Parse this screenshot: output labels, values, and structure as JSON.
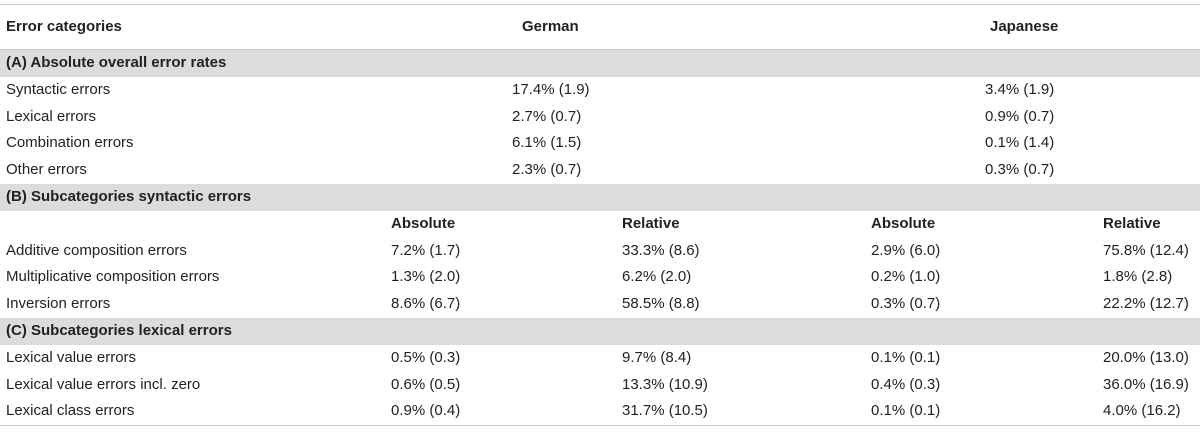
{
  "header": {
    "col_categories": "Error categories",
    "col_german": "German",
    "col_japanese": "Japanese"
  },
  "section_a": {
    "title": "(A) Absolute overall error rates",
    "rows": [
      {
        "label": "Syntactic errors",
        "german": "17.4% (1.9)",
        "japanese": "3.4% (1.9)"
      },
      {
        "label": "Lexical errors",
        "german": "2.7% (0.7)",
        "japanese": "0.9% (0.7)"
      },
      {
        "label": "Combination errors",
        "german": "6.1% (1.5)",
        "japanese": "0.1% (1.4)"
      },
      {
        "label": "Other errors",
        "german": "2.3% (0.7)",
        "japanese": "0.3% (0.7)"
      }
    ]
  },
  "section_b": {
    "title": "(B) Subcategories syntactic errors",
    "subheaders": {
      "german_absolute": "Absolute",
      "german_relative": "Relative",
      "japanese_absolute": "Absolute",
      "japanese_relative": "Relative"
    },
    "rows": [
      {
        "label": "Additive composition errors",
        "german_abs": "7.2% (1.7)",
        "german_rel": "33.3% (8.6)",
        "japanese_abs": "2.9% (6.0)",
        "japanese_rel": "75.8% (12.4)"
      },
      {
        "label": "Multiplicative composition errors",
        "german_abs": "1.3% (2.0)",
        "german_rel": "6.2% (2.0)",
        "japanese_abs": "0.2% (1.0)",
        "japanese_rel": "1.8% (2.8)"
      },
      {
        "label": "Inversion errors",
        "german_abs": "8.6% (6.7)",
        "german_rel": "58.5% (8.8)",
        "japanese_abs": "0.3% (0.7)",
        "japanese_rel": "22.2% (12.7)"
      }
    ]
  },
  "section_c": {
    "title": "(C) Subcategories lexical errors",
    "rows": [
      {
        "label": "Lexical value errors",
        "german_abs": "0.5% (0.3)",
        "german_rel": "9.7% (8.4)",
        "japanese_abs": "0.1% (0.1)",
        "japanese_rel": "20.0% (13.0)"
      },
      {
        "label": "Lexical value errors incl. zero",
        "german_abs": "0.6% (0.5)",
        "german_rel": "13.3% (10.9)",
        "japanese_abs": "0.4% (0.3)",
        "japanese_rel": "36.0% (16.9)"
      },
      {
        "label": "Lexical class errors",
        "german_abs": "0.9% (0.4)",
        "german_rel": "31.7% (10.5)",
        "japanese_abs": "0.1% (0.1)",
        "japanese_rel": "4.0% (16.2)"
      }
    ]
  }
}
